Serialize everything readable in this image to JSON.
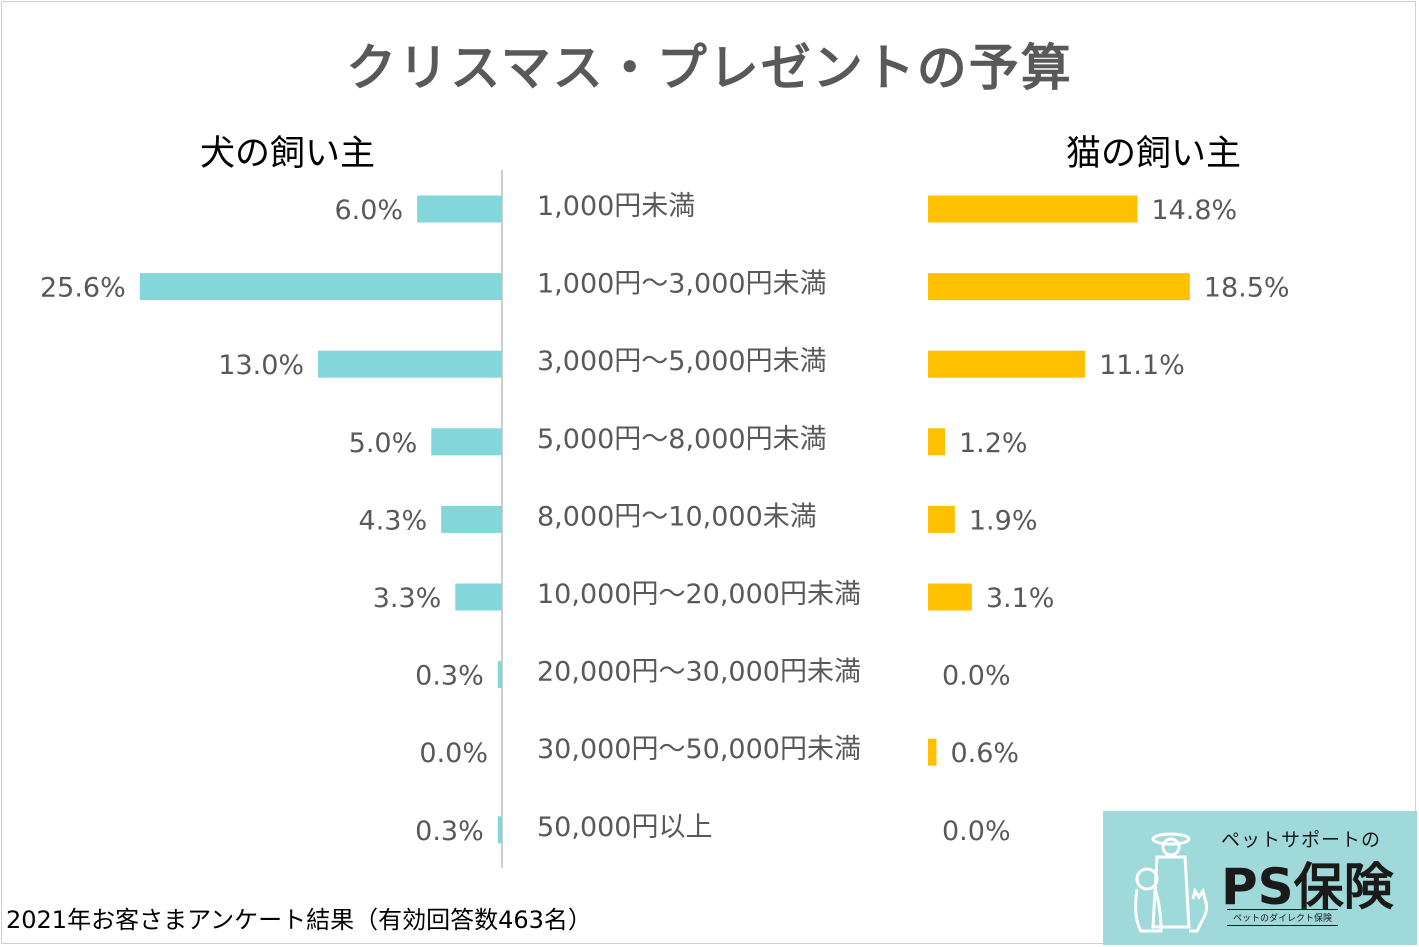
{
  "title": "クリスマス・プレゼントの予算",
  "footnote": "2021年お客さまアンケート結果（有効回答数463名）",
  "logo": {
    "tagline": "ペットサポートの",
    "brand": "PS保険",
    "sub": "ペットのダイレクト保険",
    "icon": "dog-and-cat-icon"
  },
  "colors": {
    "dog": "#83d6d9",
    "cat": "#ffc000",
    "axis": "#bfbfbf",
    "text": "#595959"
  },
  "chart_data": {
    "type": "bar",
    "categories": [
      "1,000円未満",
      "1,000円～3,000円未満",
      "3,000円～5,000円未満",
      "5,000円～8,000円未満",
      "8,000円～10,000未満",
      "10,000円～20,000円未満",
      "20,000円～30,000円未満",
      "30,000円～50,000円未満",
      "50,000円以上"
    ],
    "series": [
      {
        "name": "犬の飼い主",
        "values": [
          6.0,
          25.6,
          13.0,
          5.0,
          4.3,
          3.3,
          0.3,
          0.0,
          0.3
        ],
        "labels": [
          "6.0%",
          "25.6%",
          "13.0%",
          "5.0%",
          "4.3%",
          "3.3%",
          "0.3%",
          "0.0%",
          "0.3%"
        ]
      },
      {
        "name": "猫の飼い主",
        "values": [
          14.8,
          18.5,
          11.1,
          1.2,
          1.9,
          3.1,
          0.0,
          0.6,
          0.0
        ],
        "labels": [
          "14.8%",
          "18.5%",
          "11.1%",
          "1.2%",
          "1.9%",
          "3.1%",
          "0.0%",
          "0.6%",
          "0.0%"
        ]
      }
    ],
    "unit": "%"
  }
}
